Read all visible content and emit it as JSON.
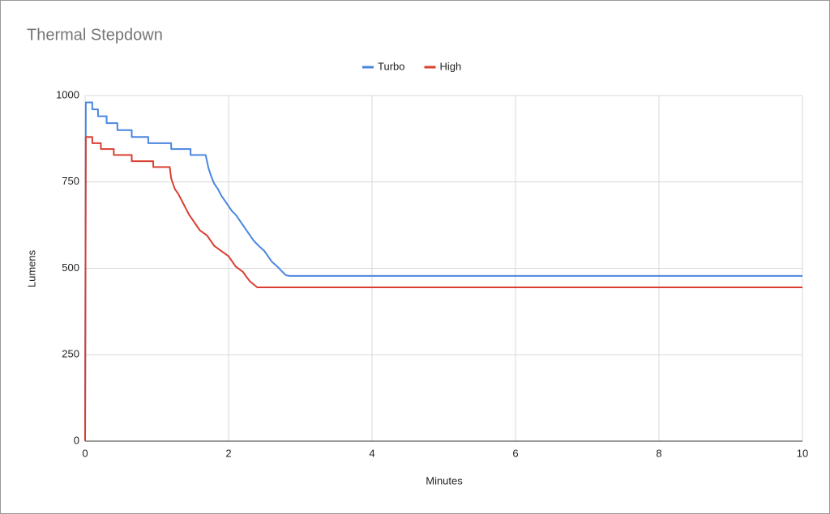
{
  "chart_data": {
    "type": "line",
    "title": "Thermal Stepdown",
    "xlabel": "Minutes",
    "ylabel": "Lumens",
    "xlim": [
      0,
      10
    ],
    "xticks": [
      0,
      2,
      4,
      6,
      8,
      10
    ],
    "ylim": [
      0,
      1000
    ],
    "yticks": [
      0,
      250,
      500,
      750,
      1000
    ],
    "grid": true,
    "legend": "top",
    "series": [
      {
        "name": "Turbo",
        "color": "#4a86e0",
        "x": [
          0,
          0.01,
          0.1,
          0.1,
          0.18,
          0.18,
          0.3,
          0.3,
          0.45,
          0.45,
          0.65,
          0.65,
          0.88,
          0.88,
          1.2,
          1.2,
          1.47,
          1.47,
          1.68,
          1.72,
          1.76,
          1.8,
          1.85,
          1.9,
          1.95,
          2.0,
          2.05,
          2.1,
          2.15,
          2.2,
          2.25,
          2.3,
          2.35,
          2.42,
          2.5,
          2.55,
          2.6,
          2.68,
          2.75,
          2.8,
          2.85,
          10
        ],
        "values": [
          0,
          980,
          980,
          960,
          960,
          940,
          940,
          920,
          920,
          900,
          900,
          880,
          880,
          862,
          862,
          845,
          845,
          828,
          828,
          790,
          765,
          745,
          730,
          710,
          695,
          680,
          665,
          655,
          640,
          625,
          610,
          595,
          580,
          565,
          550,
          535,
          520,
          505,
          490,
          480,
          478,
          478
        ]
      },
      {
        "name": "High",
        "color": "#d93f30",
        "x": [
          0,
          0.01,
          0.1,
          0.1,
          0.22,
          0.22,
          0.4,
          0.4,
          0.65,
          0.65,
          0.95,
          0.95,
          1.18,
          1.2,
          1.25,
          1.3,
          1.35,
          1.4,
          1.45,
          1.5,
          1.55,
          1.6,
          1.7,
          1.75,
          1.8,
          1.9,
          2.0,
          2.05,
          2.1,
          2.2,
          2.25,
          2.3,
          2.4,
          10
        ],
        "values": [
          0,
          880,
          880,
          862,
          862,
          845,
          845,
          828,
          828,
          810,
          810,
          793,
          793,
          760,
          730,
          715,
          695,
          675,
          655,
          640,
          625,
          610,
          595,
          580,
          565,
          550,
          535,
          520,
          505,
          490,
          475,
          462,
          445,
          445
        ]
      }
    ]
  }
}
